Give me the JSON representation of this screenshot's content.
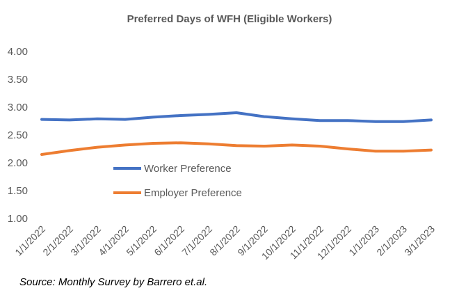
{
  "chart_data": {
    "type": "line",
    "title": "Preferred Days of WFH (Eligible Workers)",
    "source": "Source: Monthly Survey by Barrero et.al.",
    "categories": [
      "1/1/2022",
      "2/1/2022",
      "3/1/2022",
      "4/1/2022",
      "5/1/2022",
      "6/1/2022",
      "7/1/2022",
      "8/1/2022",
      "9/1/2022",
      "10/1/2022",
      "11/1/2022",
      "12/1/2022",
      "1/1/2023",
      "2/1/2023",
      "3/1/2023"
    ],
    "yticks": [
      "1.00",
      "1.50",
      "2.00",
      "2.50",
      "3.00",
      "3.50",
      "4.00"
    ],
    "ylim": [
      1.0,
      4.0
    ],
    "grid": false,
    "legend_placement": "inside-center-left",
    "series": [
      {
        "name": "Worker Preference",
        "color": "#4472C4",
        "values": [
          2.78,
          2.77,
          2.79,
          2.78,
          2.82,
          2.85,
          2.87,
          2.9,
          2.83,
          2.79,
          2.76,
          2.76,
          2.74,
          2.74,
          2.77
        ]
      },
      {
        "name": "Employer Preference",
        "color": "#ED7D31",
        "values": [
          2.15,
          2.22,
          2.28,
          2.32,
          2.35,
          2.36,
          2.34,
          2.31,
          2.3,
          2.32,
          2.3,
          2.25,
          2.21,
          2.21,
          2.23
        ]
      }
    ]
  }
}
